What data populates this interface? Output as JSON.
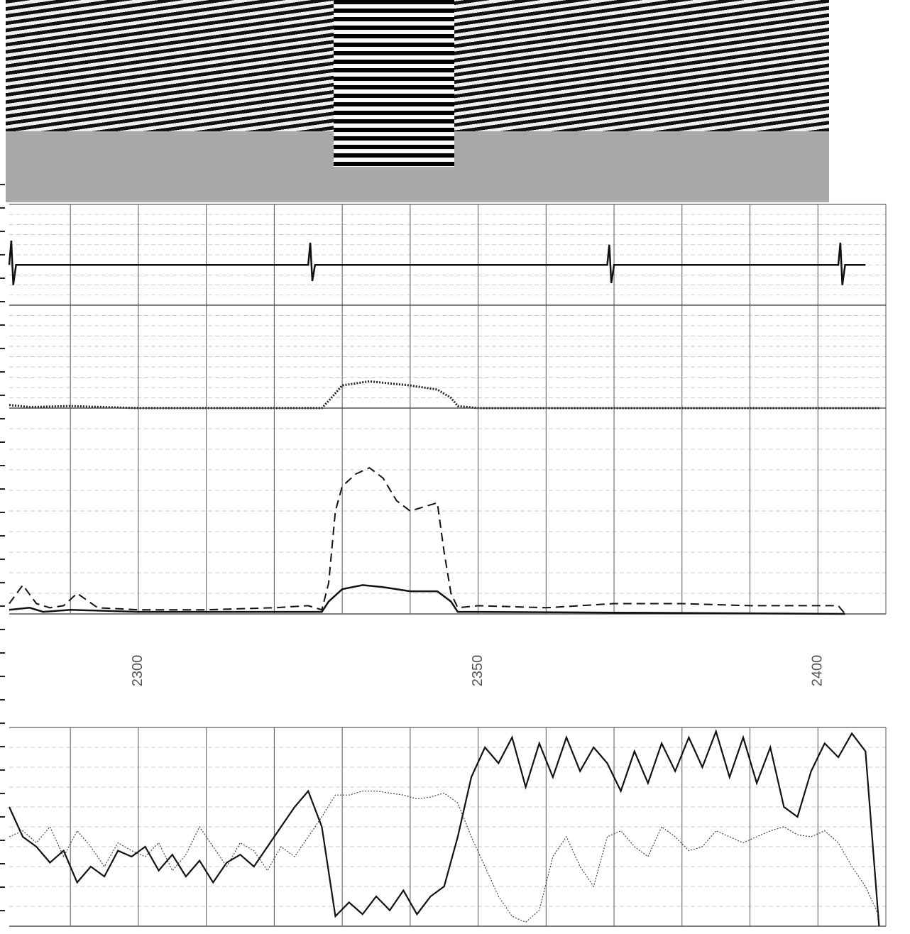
{
  "chart_data": [
    {
      "type": "line",
      "xlim": [
        2281,
        2410
      ],
      "ylim": [
        -1,
        1.5
      ],
      "xgrid": [
        2290,
        2300,
        2310,
        2320,
        2330,
        2340,
        2350,
        2360,
        2370,
        2380,
        2390,
        2400,
        2410
      ],
      "grid": true,
      "series": [
        {
          "color": "#111111",
          "style": "solid",
          "width": 2.5,
          "x": [
            2281,
            2281.3,
            2281.6,
            2282,
            2325,
            2325.3,
            2325.6,
            2326,
            2369,
            2369.3,
            2369.6,
            2370,
            2403,
            2403.3,
            2403.6,
            2404,
            2407
          ],
          "values": [
            0,
            0.6,
            -0.5,
            0,
            0,
            0.55,
            -0.4,
            0,
            0,
            0.5,
            -0.45,
            0,
            0,
            0.55,
            -0.5,
            0,
            0
          ]
        }
      ]
    },
    {
      "type": "line",
      "xlim": [
        2281,
        2410
      ],
      "ylim": [
        0,
        1
      ],
      "xgrid": [
        2290,
        2300,
        2310,
        2320,
        2330,
        2340,
        2350,
        2360,
        2370,
        2380,
        2390,
        2400,
        2410
      ],
      "grid": true,
      "series": [
        {
          "color": "#222222",
          "style": "dotted",
          "width": 3,
          "x": [
            2281,
            2284,
            2290,
            2300,
            2327,
            2328,
            2330,
            2334,
            2340,
            2344,
            2346,
            2347,
            2350,
            2409
          ],
          "values": [
            0.03,
            0.01,
            0.02,
            0,
            0,
            0.07,
            0.22,
            0.26,
            0.22,
            0.18,
            0.1,
            0.02,
            0,
            0
          ]
        }
      ]
    },
    {
      "type": "line",
      "xlim": [
        2281,
        2410
      ],
      "ylim": [
        0,
        1
      ],
      "xgrid": [
        2290,
        2300,
        2310,
        2320,
        2330,
        2340,
        2350,
        2360,
        2370,
        2380,
        2390,
        2400,
        2410
      ],
      "xticks": [
        2300,
        2350,
        2400
      ],
      "grid": true,
      "series": [
        {
          "color": "#111111",
          "style": "dashed",
          "width": 2,
          "x": [
            2281,
            2283,
            2285,
            2287,
            2289,
            2291,
            2294,
            2300,
            2310,
            2320,
            2325,
            2327,
            2328,
            2329,
            2330,
            2332,
            2334,
            2336,
            2338,
            2340,
            2342,
            2344,
            2345,
            2346,
            2347,
            2350,
            2360,
            2370,
            2380,
            2390,
            2400,
            2403,
            2404
          ],
          "values": [
            0.05,
            0.14,
            0.05,
            0.03,
            0.04,
            0.1,
            0.03,
            0.02,
            0.02,
            0.03,
            0.04,
            0.02,
            0.15,
            0.5,
            0.62,
            0.68,
            0.71,
            0.66,
            0.55,
            0.5,
            0.52,
            0.54,
            0.3,
            0.1,
            0.03,
            0.04,
            0.03,
            0.05,
            0.05,
            0.04,
            0.04,
            0.04,
            0
          ]
        },
        {
          "color": "#111111",
          "style": "solid",
          "width": 2.5,
          "x": [
            2281,
            2284,
            2286,
            2290,
            2300,
            2320,
            2327,
            2328,
            2330,
            2333,
            2336,
            2340,
            2344,
            2346,
            2347,
            2350,
            2404
          ],
          "values": [
            0.02,
            0.03,
            0.01,
            0.02,
            0.01,
            0.01,
            0.01,
            0.06,
            0.12,
            0.14,
            0.13,
            0.11,
            0.11,
            0.06,
            0.01,
            0.01,
            0
          ]
        }
      ]
    },
    {
      "type": "line",
      "xlim": [
        2281,
        2410
      ],
      "ylim": [
        0,
        1
      ],
      "xgrid": [
        2290,
        2300,
        2310,
        2320,
        2330,
        2340,
        2350,
        2360,
        2370,
        2380,
        2390,
        2400,
        2410
      ],
      "grid": true,
      "series": [
        {
          "color": "#111111",
          "style": "solid",
          "width": 2.2,
          "x": [
            2281,
            2283,
            2285,
            2287,
            2289,
            2291,
            2293,
            2295,
            2297,
            2299,
            2301,
            2303,
            2305,
            2307,
            2309,
            2311,
            2313,
            2315,
            2317,
            2319,
            2321,
            2323,
            2325,
            2327,
            2329,
            2331,
            2333,
            2335,
            2337,
            2339,
            2341,
            2343,
            2345,
            2347,
            2349,
            2351,
            2353,
            2355,
            2357,
            2359,
            2361,
            2363,
            2365,
            2367,
            2369,
            2371,
            2373,
            2375,
            2377,
            2379,
            2381,
            2383,
            2385,
            2387,
            2389,
            2391,
            2393,
            2395,
            2397,
            2399,
            2401,
            2403,
            2405,
            2407,
            2409
          ],
          "values": [
            0.6,
            0.45,
            0.4,
            0.32,
            0.38,
            0.22,
            0.3,
            0.25,
            0.38,
            0.35,
            0.4,
            0.28,
            0.36,
            0.25,
            0.33,
            0.22,
            0.32,
            0.36,
            0.3,
            0.4,
            0.5,
            0.6,
            0.68,
            0.5,
            0.05,
            0.12,
            0.06,
            0.15,
            0.08,
            0.18,
            0.06,
            0.15,
            0.2,
            0.45,
            0.75,
            0.9,
            0.82,
            0.95,
            0.7,
            0.92,
            0.75,
            0.95,
            0.78,
            0.9,
            0.82,
            0.68,
            0.88,
            0.72,
            0.92,
            0.78,
            0.95,
            0.8,
            0.98,
            0.75,
            0.95,
            0.72,
            0.9,
            0.6,
            0.55,
            0.78,
            0.92,
            0.85,
            0.97,
            0.88,
            0
          ]
        },
        {
          "color": "#444444",
          "style": "dotted",
          "width": 1.2,
          "x": [
            2281,
            2283,
            2285,
            2287,
            2289,
            2291,
            2293,
            2295,
            2297,
            2299,
            2301,
            2303,
            2305,
            2307,
            2309,
            2311,
            2313,
            2315,
            2317,
            2319,
            2321,
            2323,
            2325,
            2327,
            2329,
            2331,
            2333,
            2335,
            2337,
            2339,
            2341,
            2343,
            2345,
            2347,
            2349,
            2351,
            2353,
            2355,
            2357,
            2359,
            2361,
            2363,
            2365,
            2367,
            2369,
            2371,
            2373,
            2375,
            2377,
            2379,
            2381,
            2383,
            2385,
            2387,
            2389,
            2391,
            2393,
            2395,
            2397,
            2399,
            2401,
            2403,
            2405,
            2407,
            2409
          ],
          "values": [
            0.45,
            0.48,
            0.42,
            0.5,
            0.35,
            0.48,
            0.4,
            0.3,
            0.42,
            0.38,
            0.35,
            0.42,
            0.28,
            0.36,
            0.5,
            0.4,
            0.3,
            0.42,
            0.38,
            0.28,
            0.4,
            0.35,
            0.45,
            0.55,
            0.66,
            0.66,
            0.68,
            0.68,
            0.67,
            0.66,
            0.64,
            0.65,
            0.67,
            0.62,
            0.45,
            0.3,
            0.15,
            0.05,
            0.02,
            0.08,
            0.35,
            0.45,
            0.3,
            0.2,
            0.45,
            0.48,
            0.4,
            0.35,
            0.5,
            0.45,
            0.38,
            0.4,
            0.48,
            0.45,
            0.42,
            0.45,
            0.48,
            0.5,
            0.46,
            0.45,
            0.48,
            0.42,
            0.3,
            0.2,
            0.05
          ]
        }
      ]
    }
  ]
}
